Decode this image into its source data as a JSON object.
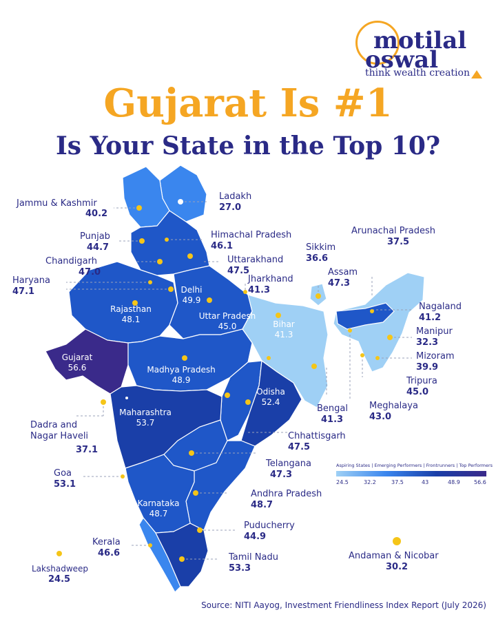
{
  "brand": {
    "line1": "motilal",
    "line2": "oswal",
    "tagline": "think wealth creation"
  },
  "title": "Gujarat Is #1",
  "subtitle": "Is Your State in the Top 10?",
  "colors": {
    "accent": "#f5a623",
    "navy": "#2a2a86",
    "light": "#9fd0f5",
    "mid": "#3a86ee",
    "dark": "#1a3fa8",
    "top": "#3a2a8a"
  },
  "states": {
    "jammu_kashmir": {
      "name": "Jammu & Kashmir",
      "score": "40.2"
    },
    "ladakh": {
      "name": "Ladakh",
      "score": "27.0"
    },
    "punjab": {
      "name": "Punjab",
      "score": "44.7"
    },
    "himachal": {
      "name": "Himachal Pradesh",
      "score": "46.1"
    },
    "chandigarh": {
      "name": "Chandigarh",
      "score": "47.0"
    },
    "uttarakhand": {
      "name": "Uttarakhand",
      "score": "47.5"
    },
    "haryana": {
      "name": "Haryana",
      "score": "47.1"
    },
    "jharkhand": {
      "name": "Jharkhand",
      "score": "41.3"
    },
    "delhi": {
      "name": "Delhi",
      "score": "49.9"
    },
    "rajasthan": {
      "name": "Rajasthan",
      "score": "48.1"
    },
    "uttar_pradesh": {
      "name": "Uttar Pradesh",
      "score": "45.0"
    },
    "bihar": {
      "name": "Bihar",
      "score": "41.3"
    },
    "sikkim": {
      "name": "Sikkim",
      "score": "36.6"
    },
    "arunachal": {
      "name": "Arunachal Pradesh",
      "score": "37.5"
    },
    "assam": {
      "name": "Assam",
      "score": "47.3"
    },
    "nagaland": {
      "name": "Nagaland",
      "score": "41.2"
    },
    "manipur": {
      "name": "Manipur",
      "score": "32.3"
    },
    "mizoram": {
      "name": "Mizoram",
      "score": "39.9"
    },
    "tripura": {
      "name": "Tripura",
      "score": "45.0"
    },
    "meghalaya": {
      "name": "Meghalaya",
      "score": "43.0"
    },
    "bengal": {
      "name": "Bengal",
      "score": "41.3"
    },
    "gujarat": {
      "name": "Gujarat",
      "score": "56.6"
    },
    "madhya_pradesh": {
      "name": "Madhya Pradesh",
      "score": "48.9"
    },
    "odisha": {
      "name": "Odisha",
      "score": "52.4"
    },
    "dadra": {
      "name": "Dadra and\nNagar Haveli",
      "score": "37.1"
    },
    "maharashtra": {
      "name": "Maharashtra",
      "score": "53.7"
    },
    "chhattisgarh": {
      "name": "Chhattisgarh",
      "score": "47.5"
    },
    "telangana": {
      "name": "Telangana",
      "score": "47.3"
    },
    "goa": {
      "name": "Goa",
      "score": "53.1"
    },
    "andhra": {
      "name": "Andhra Pradesh",
      "score": "48.7"
    },
    "karnataka": {
      "name": "Karnataka",
      "score": "48.7"
    },
    "puducherry": {
      "name": "Puducherry",
      "score": "44.9"
    },
    "kerala": {
      "name": "Kerala",
      "score": "46.6"
    },
    "tamil_nadu": {
      "name": "Tamil Nadu",
      "score": "53.3"
    },
    "andaman": {
      "name": "Andaman & Nicobar",
      "score": "30.2"
    },
    "lakshadweep": {
      "name": "Lakshadweep",
      "score": "24.5"
    }
  },
  "legend": {
    "title": "Aspiring States | Emerging Performers | Frontrunners | Top Performers",
    "ticks": [
      "24.5",
      "32.2",
      "37.5",
      "43",
      "48.9",
      "56.6"
    ]
  },
  "source": "Source: NITI Aayog, Investment Friendliness Index Report (July 2026)"
}
